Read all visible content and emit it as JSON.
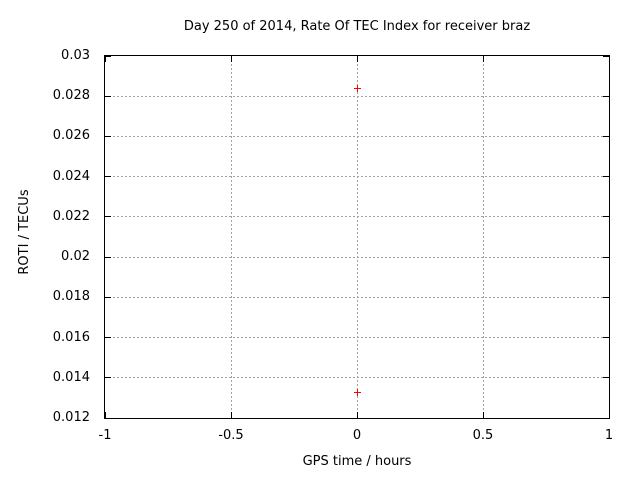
{
  "chart_data": {
    "type": "scatter",
    "title": "Day 250 of 2014, Rate Of TEC Index for receiver braz",
    "xlabel": "GPS time / hours",
    "ylabel": "ROTI / TECUs",
    "xlim": [
      -1,
      1
    ],
    "ylim": [
      0.012,
      0.03
    ],
    "xticks": [
      -1,
      -0.5,
      0,
      0.5,
      1
    ],
    "xtick_labels": [
      "-1",
      "-0.5",
      "0",
      "0.5",
      "1"
    ],
    "yticks": [
      0.012,
      0.014,
      0.016,
      0.018,
      0.02,
      0.022,
      0.024,
      0.026,
      0.028,
      0.03
    ],
    "ytick_labels": [
      "0.012",
      "0.014",
      "0.016",
      "0.018",
      "0.02",
      "0.022",
      "0.024",
      "0.026",
      "0.028",
      "0.03"
    ],
    "grid": true,
    "grid_style": "dotted",
    "grid_color": "#a0a0a0",
    "border_color": "#000000",
    "text_color": "#000000",
    "background_color": "#ffffff",
    "legend_position": "none",
    "series": [
      {
        "name": "",
        "marker": "plus-icon",
        "color": "#ff0000",
        "points": [
          {
            "x": 0,
            "y": 0.0284
          },
          {
            "x": 0,
            "y": 0.0133
          }
        ]
      }
    ]
  }
}
